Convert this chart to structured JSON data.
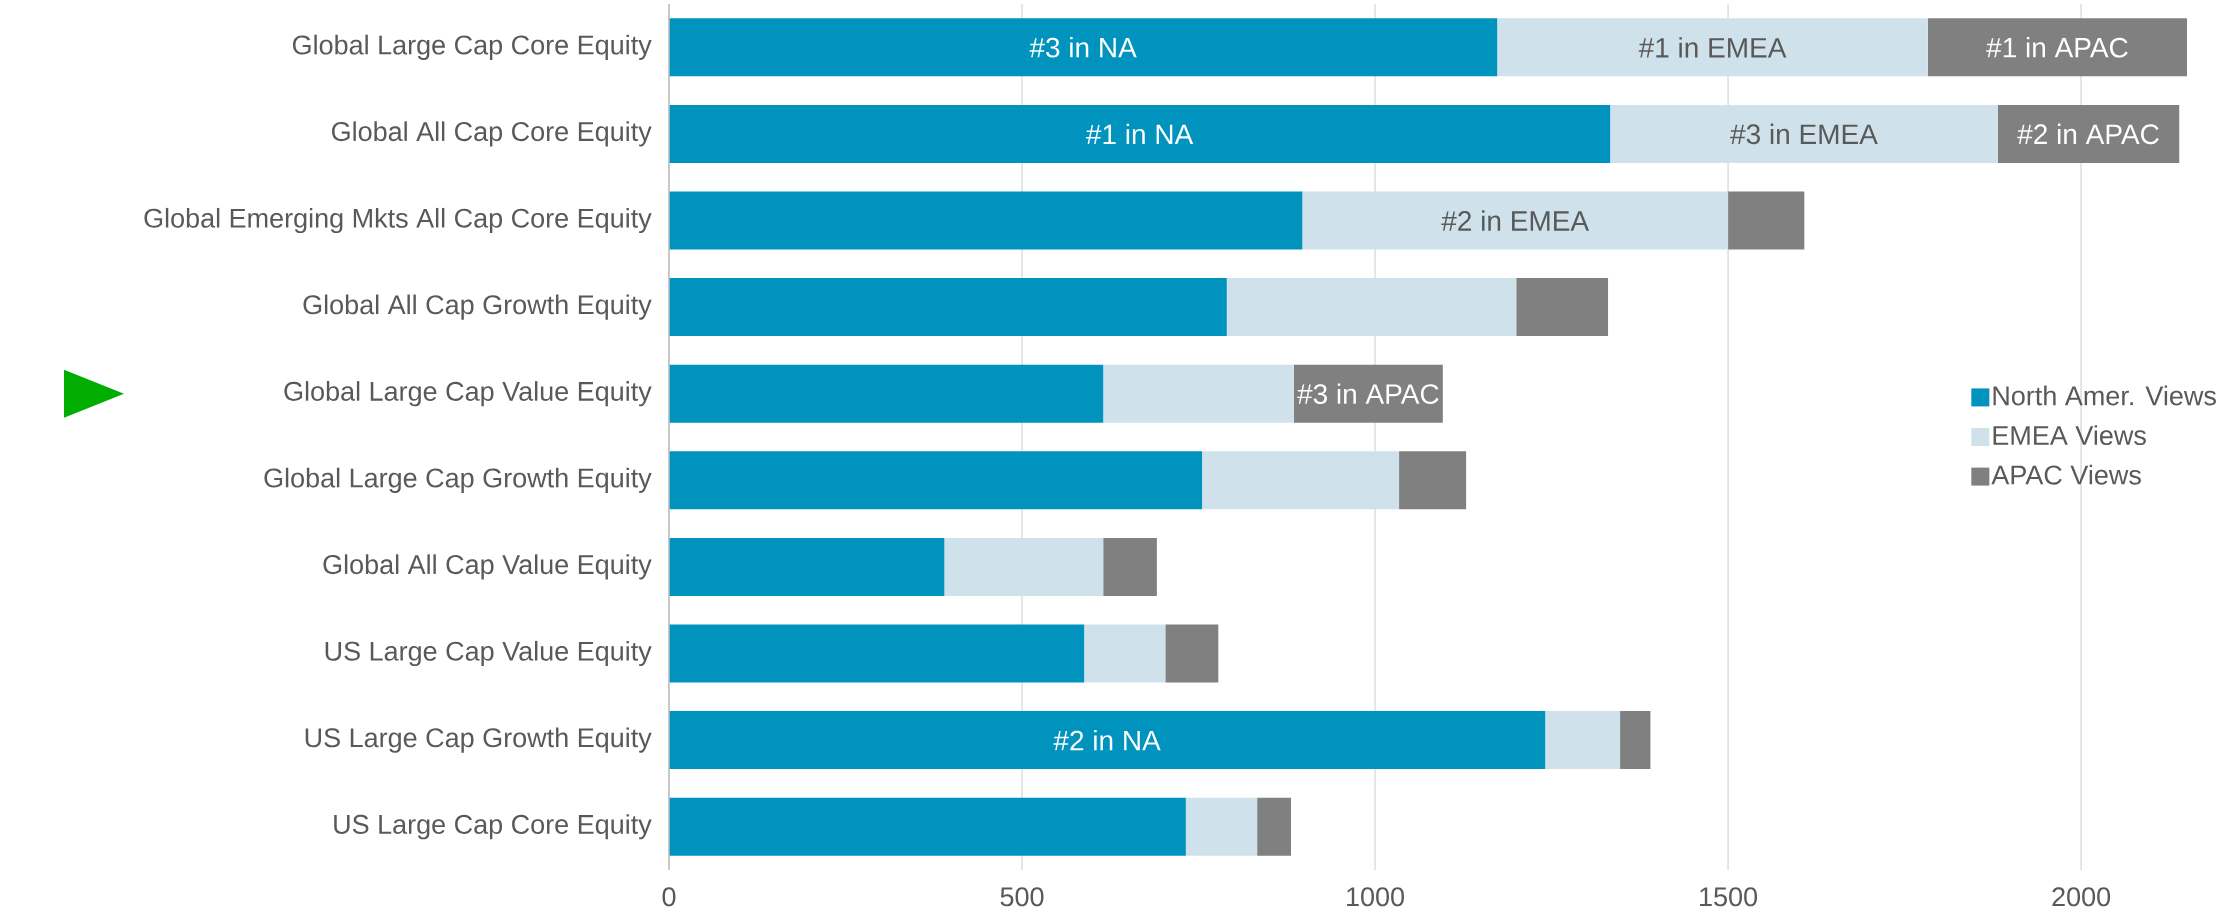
{
  "chart_data": {
    "type": "bar",
    "orientation": "horizontal",
    "stacked": true,
    "categories": [
      "Global Large Cap Core Equity",
      "Global All Cap Core Equity",
      "Global Emerging Mkts All Cap Core Equity",
      "Global All Cap Growth Equity",
      "Global Large Cap Value Equity",
      "Global Large Cap Growth Equity",
      "Global All Cap Value Equity",
      "US Large Cap Value Equity",
      "US Large Cap Growth Equity",
      "US Large Cap Core Equity"
    ],
    "series": [
      {
        "name": "North Amer. Views",
        "color": "#0093be",
        "values": [
          1173,
          1333,
          897,
          790,
          615,
          755,
          390,
          588,
          1241,
          732
        ]
      },
      {
        "name": "EMEA Views",
        "color": "#cfe2eb",
        "values": [
          610,
          549,
          603,
          410,
          270,
          279,
          225,
          115,
          106,
          101
        ]
      },
      {
        "name": "APAC Views",
        "color": "#808080",
        "values": [
          367,
          257,
          108,
          130,
          211,
          95,
          76,
          75,
          43,
          48
        ]
      }
    ],
    "annotations": [
      "#3 in NA",
      "#1 in EMEA",
      "#1 in APAC",
      "#1 in NA",
      "#3 in EMEA",
      "#2 in APAC",
      "#2 in EMEA",
      "#3 in APAC",
      "#2 in NA"
    ],
    "xlim": [
      0,
      2150
    ],
    "xticks": [
      0,
      500,
      1000,
      1500,
      2000
    ],
    "grid": "x",
    "legend": "right"
  }
}
